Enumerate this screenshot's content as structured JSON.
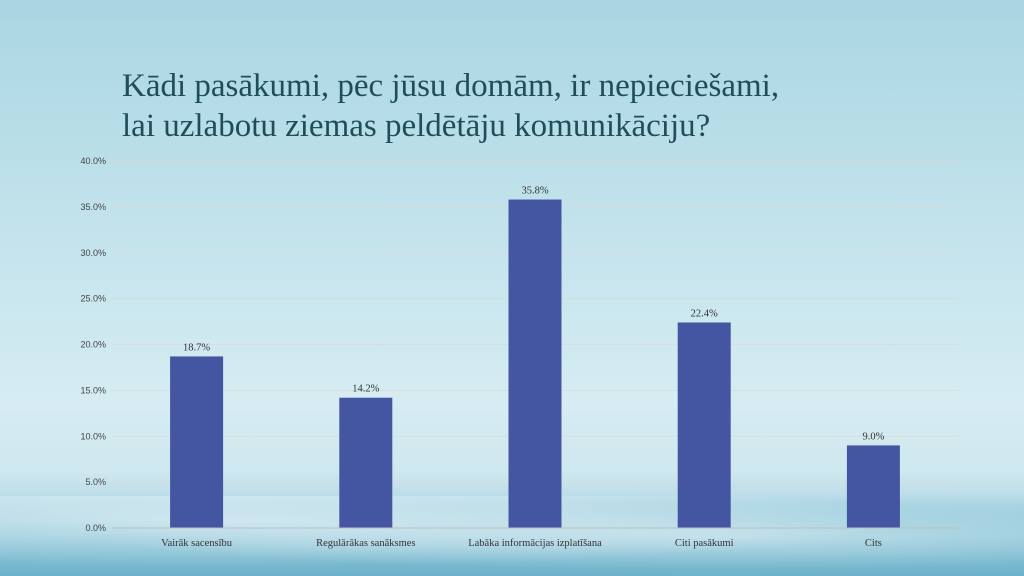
{
  "slide": {
    "title": "Kādi  pasākumi, pēc jūsu domām, ir nepieciešami,\nlai uzlabotu ziemas peldētāju komunikāciju?"
  },
  "chart_data": {
    "type": "bar",
    "title": "",
    "xlabel": "",
    "ylabel": "",
    "categories": [
      "Vairāk sacensību",
      "Regulārākas sanāksmes",
      "Labāka informācijas izplatīšana",
      "Citi pasākumi",
      "Cits"
    ],
    "values": [
      18.7,
      14.2,
      35.8,
      22.4,
      9.0
    ],
    "data_labels": [
      "18.7%",
      "14.2%",
      "35.8%",
      "22.4%",
      "9.0%"
    ],
    "ylim": [
      0,
      40
    ],
    "yticks": [
      "0.0%",
      "5.0%",
      "10.0%",
      "15.0%",
      "20.0%",
      "25.0%",
      "30.0%",
      "35.0%",
      "40.0%"
    ],
    "grid": true,
    "legend": "none",
    "bar_color": "#4455a2",
    "grid_color": "#d9d9d9"
  }
}
